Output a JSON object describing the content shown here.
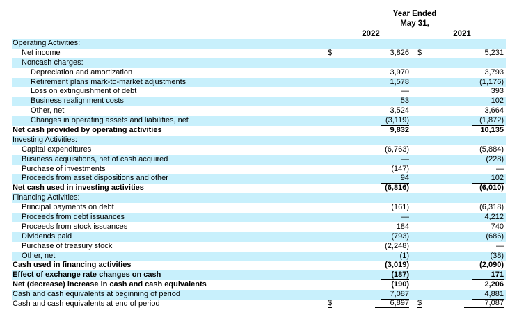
{
  "header": {
    "period_line1": "Year Ended",
    "period_line2": "May 31,",
    "year1": "2022",
    "year2": "2021"
  },
  "rows": [
    {
      "label": "Operating Activities:",
      "indent": 0,
      "bold": false,
      "v2022": "",
      "v2021": ""
    },
    {
      "label": "Net income",
      "indent": 1,
      "bold": false,
      "dollar": true,
      "v2022": "3,826",
      "v2021": "5,231"
    },
    {
      "label": "Noncash charges:",
      "indent": 1,
      "bold": false,
      "v2022": "",
      "v2021": ""
    },
    {
      "label": "Depreciation and amortization",
      "indent": 2,
      "bold": false,
      "v2022": "3,970",
      "v2021": "3,793"
    },
    {
      "label": "Retirement plans mark-to-market adjustments",
      "indent": 2,
      "bold": false,
      "v2022": "1,578",
      "v2021": "(1,176)"
    },
    {
      "label": "Loss on extinguishment of debt",
      "indent": 2,
      "bold": false,
      "v2022": "—",
      "v2021": "393"
    },
    {
      "label": "Business realignment costs",
      "indent": 2,
      "bold": false,
      "v2022": "53",
      "v2021": "102"
    },
    {
      "label": "Other, net",
      "indent": 2,
      "bold": false,
      "v2022": "3,524",
      "v2021": "3,664"
    },
    {
      "label": "Changes in operating assets and liabilities, net",
      "indent": 2,
      "bold": false,
      "v2022": "(3,119)",
      "v2021": "(1,872)",
      "ul": true
    },
    {
      "label": "Net cash provided by operating activities",
      "indent": 0,
      "bold": true,
      "v2022": "9,832",
      "v2021": "10,135"
    },
    {
      "label": "Investing Activities:",
      "indent": 0,
      "bold": false,
      "v2022": "",
      "v2021": ""
    },
    {
      "label": "Capital expenditures",
      "indent": 1,
      "bold": false,
      "v2022": "(6,763)",
      "v2021": "(5,884)"
    },
    {
      "label": "Business acquisitions, net of cash acquired",
      "indent": 1,
      "bold": false,
      "v2022": "—",
      "v2021": "(228)"
    },
    {
      "label": "Purchase of investments",
      "indent": 1,
      "bold": false,
      "v2022": "(147)",
      "v2021": "—"
    },
    {
      "label": "Proceeds from asset dispositions and other",
      "indent": 1,
      "bold": false,
      "v2022": "94",
      "v2021": "102",
      "ul": true
    },
    {
      "label": "Net cash used in investing activities",
      "indent": 0,
      "bold": true,
      "v2022": "(6,816)",
      "v2021": "(6,010)"
    },
    {
      "label": "Financing Activities:",
      "indent": 0,
      "bold": false,
      "v2022": "",
      "v2021": ""
    },
    {
      "label": "Principal payments on debt",
      "indent": 1,
      "bold": false,
      "v2022": "(161)",
      "v2021": "(6,318)"
    },
    {
      "label": "Proceeds from debt issuances",
      "indent": 1,
      "bold": false,
      "v2022": "—",
      "v2021": "4,212"
    },
    {
      "label": "Proceeds from stock issuances",
      "indent": 1,
      "bold": false,
      "v2022": "184",
      "v2021": "740"
    },
    {
      "label": "Dividends paid",
      "indent": 1,
      "bold": false,
      "v2022": "(793)",
      "v2021": "(686)"
    },
    {
      "label": "Purchase of treasury stock",
      "indent": 1,
      "bold": false,
      "v2022": "(2,248)",
      "v2021": "—"
    },
    {
      "label": "Other, net",
      "indent": 1,
      "bold": false,
      "v2022": "(1)",
      "v2021": "(38)",
      "ul": true
    },
    {
      "label": "Cash used in financing activities",
      "indent": 0,
      "bold": true,
      "v2022": "(3,019)",
      "v2021": "(2,090)",
      "ul": true
    },
    {
      "label": "Effect of exchange rate changes on cash",
      "indent": 0,
      "bold": true,
      "v2022": "(187)",
      "v2021": "171",
      "ul": true
    },
    {
      "label": "Net (decrease) increase in cash and cash equivalents",
      "indent": 0,
      "bold": true,
      "v2022": "(190)",
      "v2021": "2,206"
    },
    {
      "label": "Cash and cash equivalents at beginning of period",
      "indent": 0,
      "bold": false,
      "v2022": "7,087",
      "v2021": "4,881",
      "ul": true
    },
    {
      "label": "Cash and cash equivalents at end of period",
      "indent": 0,
      "bold": false,
      "dollar": true,
      "v2022": "6,897",
      "v2021": "7,087",
      "dul": true
    }
  ],
  "currency_symbol": "$"
}
